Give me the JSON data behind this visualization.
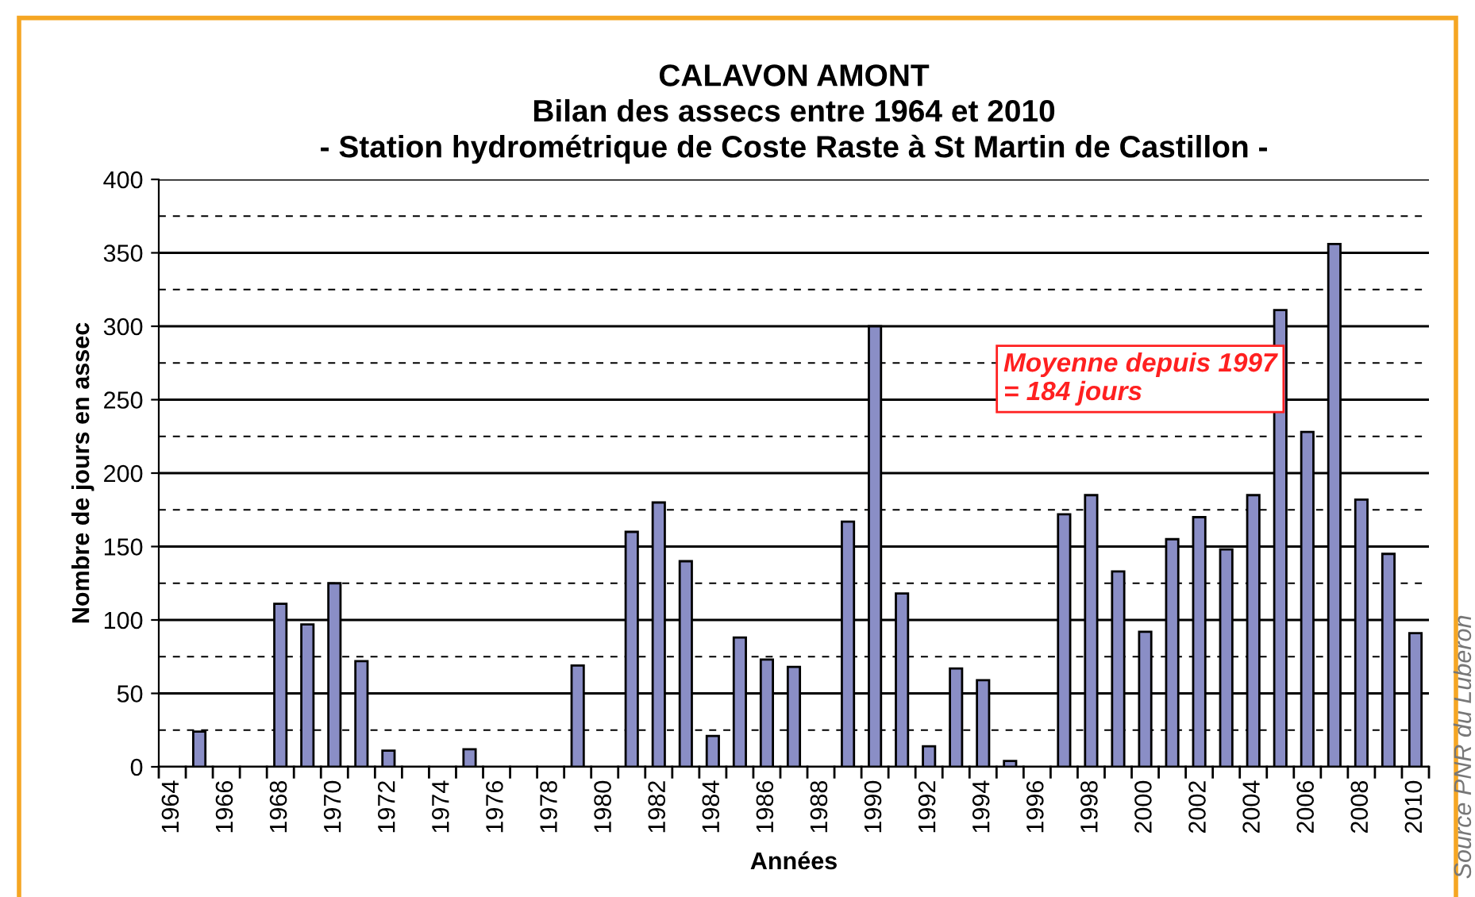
{
  "chart_data": {
    "type": "bar",
    "title": "CALAVON AMONT\nBilan des assecs entre 1964 et 2010\n- Station hydrométrique de Coste Raste à St Martin de Castillon -",
    "xlabel": "Années",
    "ylabel": "Nombre de jours en assec",
    "categories": [
      "1964",
      null,
      "1966",
      null,
      "1968",
      null,
      "1970",
      null,
      "1972",
      null,
      "1974",
      null,
      "1976",
      null,
      "1978",
      null,
      "1980",
      null,
      "1982",
      null,
      "1984",
      null,
      "1986",
      null,
      "1988",
      null,
      "1990",
      null,
      "1992",
      null,
      "1994",
      null,
      "1996",
      null,
      "1998",
      null,
      "2000",
      null,
      "2002",
      null,
      "2004",
      null,
      "2006",
      null,
      "2008",
      null,
      "2010"
    ],
    "values": [
      0,
      24,
      0,
      0,
      111,
      97,
      125,
      72,
      11,
      0,
      0,
      12,
      0,
      0,
      0,
      69,
      0,
      160,
      180,
      140,
      21,
      88,
      73,
      68,
      0,
      167,
      300,
      118,
      14,
      67,
      59,
      4,
      0,
      172,
      185,
      133,
      92,
      155,
      170,
      148,
      185,
      311,
      228,
      356,
      182,
      145,
      91
    ],
    "color": "#8a8ec6",
    "ylim": [
      0,
      400
    ],
    "yticks": [
      0,
      50,
      100,
      150,
      200,
      250,
      300,
      350,
      400
    ],
    "grid": "y",
    "ref_lines": [
      {
        "axis": "y",
        "value": 25,
        "line_style": "dashed",
        "color": "#000000"
      },
      {
        "axis": "y",
        "value": 75,
        "line_style": "dashed",
        "color": "#000000"
      },
      {
        "axis": "y",
        "value": 125,
        "line_style": "dashed",
        "color": "#000000"
      },
      {
        "axis": "y",
        "value": 175,
        "line_style": "dashed",
        "color": "#000000"
      },
      {
        "axis": "y",
        "value": 225,
        "line_style": "dashed",
        "color": "#000000"
      },
      {
        "axis": "y",
        "value": 275,
        "line_style": "dashed",
        "color": "#000000"
      },
      {
        "axis": "y",
        "value": 325,
        "line_style": "dashed",
        "color": "#000000"
      },
      {
        "axis": "y",
        "value": 375,
        "line_style": "dashed",
        "color": "#000000"
      }
    ],
    "annotations": [
      "Moyenne depuis 1997\n= 184 jours",
      "Source PNR du Luberon"
    ]
  }
}
